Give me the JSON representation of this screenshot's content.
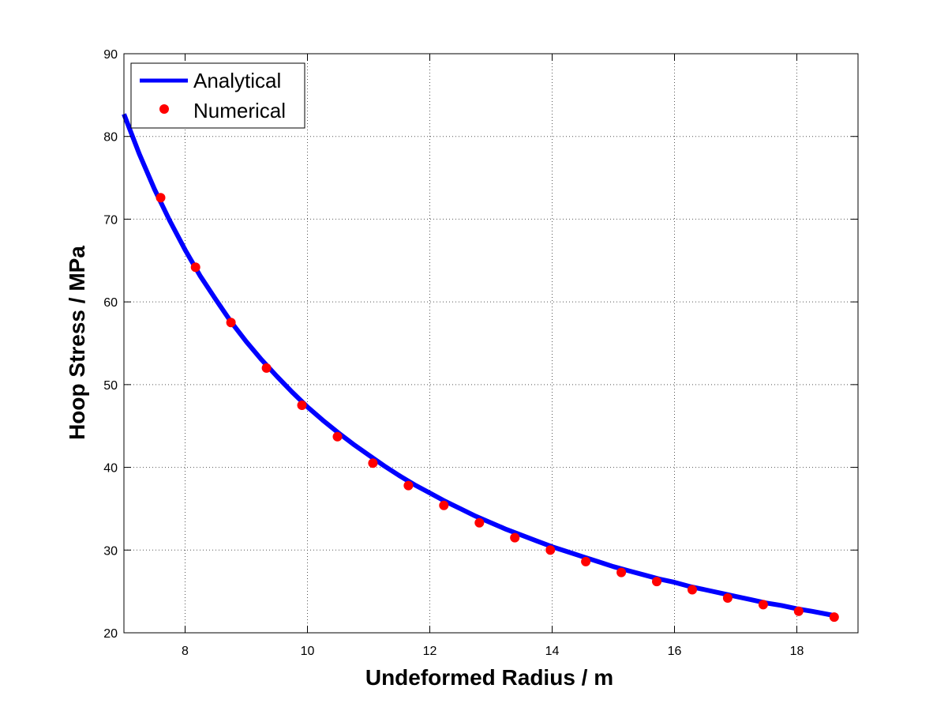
{
  "chart_data": {
    "type": "line",
    "xlabel": "Undeformed Radius / m",
    "ylabel": "Hoop Stress / MPa",
    "xlim": [
      7,
      19
    ],
    "ylim": [
      20,
      90
    ],
    "xticks": [
      8,
      10,
      12,
      14,
      16,
      18
    ],
    "yticks": [
      20,
      30,
      40,
      50,
      60,
      70,
      80,
      90
    ],
    "grid": true,
    "legend_position": "top-left",
    "series": [
      {
        "name": "Analytical",
        "style": "line",
        "color": "#0000ff",
        "x": [
          7.0,
          7.25,
          7.5,
          7.75,
          8.0,
          8.25,
          8.5,
          8.75,
          9.0,
          9.25,
          9.5,
          9.75,
          10.0,
          10.25,
          10.5,
          10.75,
          11.0,
          11.25,
          11.5,
          11.75,
          12.0,
          12.25,
          12.5,
          12.75,
          13.0,
          13.25,
          13.5,
          13.75,
          14.0,
          14.25,
          14.5,
          14.75,
          15.0,
          15.25,
          15.5,
          15.75,
          16.0,
          16.25,
          16.5,
          16.75,
          17.0,
          17.25,
          17.5,
          17.75,
          18.0,
          18.25,
          18.6
        ],
        "y": [
          82.7,
          77.9,
          73.6,
          69.8,
          66.3,
          63.1,
          60.3,
          57.6,
          55.2,
          53.0,
          51.0,
          49.1,
          47.3,
          45.7,
          44.2,
          42.8,
          41.5,
          40.2,
          39.0,
          37.9,
          36.9,
          35.9,
          35.0,
          34.1,
          33.3,
          32.5,
          31.8,
          31.1,
          30.4,
          29.8,
          29.2,
          28.6,
          28.0,
          27.5,
          27.0,
          26.5,
          26.1,
          25.6,
          25.2,
          24.8,
          24.4,
          24.0,
          23.6,
          23.3,
          22.9,
          22.6,
          22.1
        ]
      },
      {
        "name": "Numerical",
        "style": "markers",
        "color": "#ff0000",
        "x": [
          7.6,
          8.17,
          8.75,
          9.33,
          9.91,
          10.49,
          11.07,
          11.65,
          12.23,
          12.81,
          13.39,
          13.97,
          14.55,
          15.13,
          15.71,
          16.29,
          16.87,
          17.45,
          18.03,
          18.61
        ],
        "y": [
          72.6,
          64.2,
          57.5,
          52.0,
          47.5,
          43.7,
          40.5,
          37.8,
          35.4,
          33.3,
          31.5,
          30.0,
          28.6,
          27.3,
          26.2,
          25.2,
          24.2,
          23.4,
          22.6,
          21.9
        ]
      }
    ]
  },
  "colors": {
    "grid": "#555555",
    "axes": "#000000",
    "background": "#ffffff"
  }
}
